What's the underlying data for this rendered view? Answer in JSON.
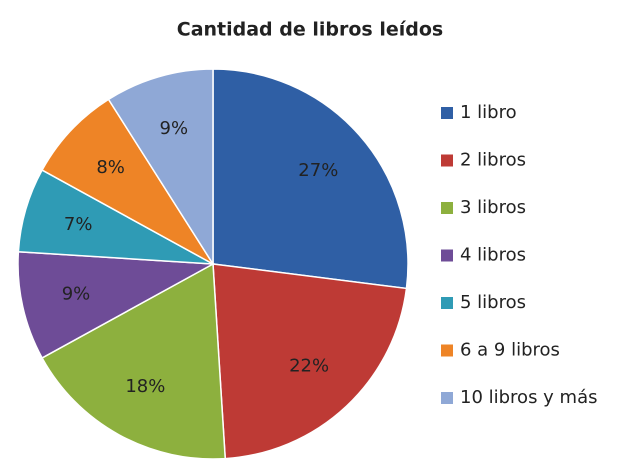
{
  "chart_data": {
    "type": "pie",
    "title": "Cantidad de libros leídos",
    "categories": [
      "1 libro",
      "2 libros",
      "3 libros",
      "4 libros",
      "5 libros",
      "6 a 9 libros",
      "10 libros y más"
    ],
    "values": [
      27,
      22,
      18,
      9,
      7,
      8,
      9
    ],
    "value_labels": [
      "27%",
      "22%",
      "18%",
      "9%",
      "7%",
      "8%",
      "9%"
    ],
    "colors": [
      "#2f5fa5",
      "#be3a35",
      "#8db03e",
      "#6e4c97",
      "#2f9bb5",
      "#ee8426",
      "#8fa8d6"
    ],
    "legend": "right"
  }
}
